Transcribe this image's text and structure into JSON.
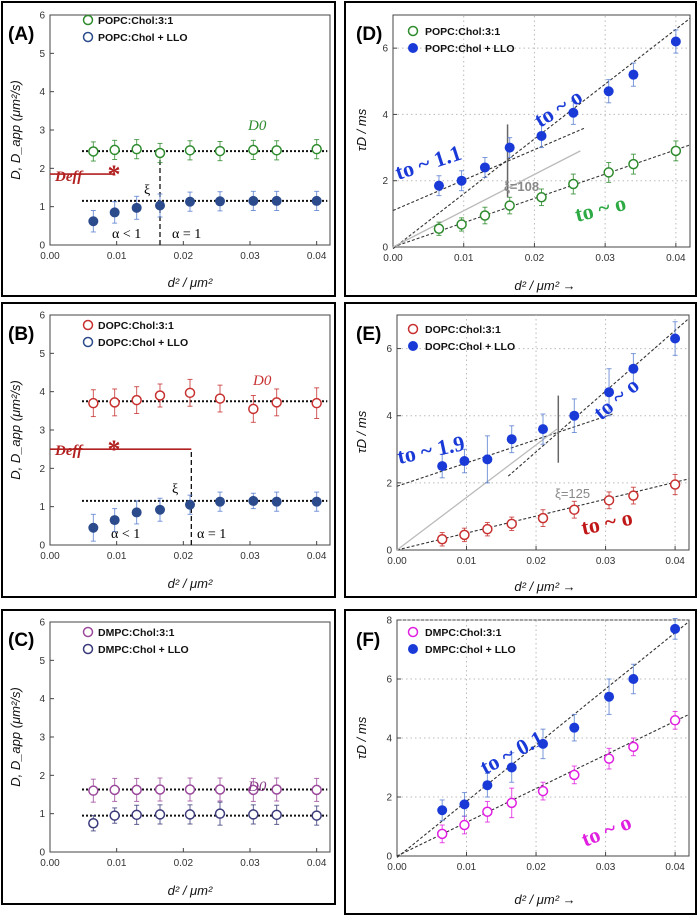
{
  "chart_data": [
    {
      "id": "A",
      "panel_label": "(A)",
      "type": "scatter",
      "xlabel": "d² / μm²",
      "ylabel": "D, D_app (μm²/s)",
      "xlim": [
        0,
        0.042
      ],
      "ylim": [
        0,
        6
      ],
      "xticks": [
        "0.00",
        "0.01",
        "0.02",
        "0.03",
        "0.04"
      ],
      "yticks": [
        "0",
        "1",
        "2",
        "3",
        "4",
        "5",
        "6"
      ],
      "series": [
        {
          "name": "POPC:Chol:3:1",
          "marker": "open",
          "color": "#2e8b2e",
          "x": [
            0.0065,
            0.0097,
            0.013,
            0.0165,
            0.021,
            0.0255,
            0.0305,
            0.034,
            0.04
          ],
          "y": [
            2.44,
            2.48,
            2.5,
            2.4,
            2.47,
            2.45,
            2.48,
            2.47,
            2.5
          ],
          "err": [
            0.25,
            0.25,
            0.25,
            0.25,
            0.25,
            0.25,
            0.25,
            0.25,
            0.25
          ]
        },
        {
          "name": "POPC:Chol + LLO",
          "marker": "filled",
          "color": "#2b4b8c",
          "x": [
            0.0065,
            0.0097,
            0.013,
            0.0165,
            0.021,
            0.0255,
            0.0305,
            0.034,
            0.04
          ],
          "y": [
            0.62,
            0.85,
            0.97,
            1.03,
            1.13,
            1.14,
            1.15,
            1.15,
            1.15
          ],
          "err": [
            0.28,
            0.28,
            0.3,
            0.3,
            0.25,
            0.25,
            0.25,
            0.25,
            0.25
          ]
        }
      ],
      "hlines": [
        2.45,
        1.15
      ],
      "vline": 0.0165,
      "annotations": {
        "d0": "D0",
        "deff": "Deff",
        "xi": "ξ",
        "alpha_lt": "α < 1",
        "alpha_eq": "α = 1"
      },
      "deff": {
        "y": 1.85,
        "x_end": 0.0096,
        "color": "#b22020"
      }
    },
    {
      "id": "B",
      "panel_label": "(B)",
      "type": "scatter",
      "xlabel": "d² / μm²",
      "ylabel": "D, D_app (μm²/s)",
      "xlim": [
        0,
        0.042
      ],
      "ylim": [
        0,
        6
      ],
      "xticks": [
        "0.00",
        "0.01",
        "0.02",
        "0.03",
        "0.04"
      ],
      "yticks": [
        "0",
        "1",
        "2",
        "3",
        "4",
        "5",
        "6"
      ],
      "series": [
        {
          "name": "DOPC:Chol:3:1",
          "marker": "open",
          "color": "#c83030",
          "x": [
            0.0065,
            0.0097,
            0.013,
            0.0165,
            0.021,
            0.0255,
            0.0305,
            0.034,
            0.04
          ],
          "y": [
            3.7,
            3.72,
            3.78,
            3.9,
            3.97,
            3.82,
            3.55,
            3.72,
            3.7
          ],
          "err": [
            0.35,
            0.35,
            0.35,
            0.3,
            0.35,
            0.35,
            0.35,
            0.35,
            0.4
          ]
        },
        {
          "name": "DOPC:Chol + LLO",
          "marker": "filled",
          "color": "#2b4b8c",
          "x": [
            0.0065,
            0.0097,
            0.013,
            0.0165,
            0.021,
            0.0255,
            0.0305,
            0.034,
            0.04
          ],
          "y": [
            0.45,
            0.65,
            0.85,
            0.92,
            1.05,
            1.13,
            1.15,
            1.13,
            1.13
          ],
          "err": [
            0.35,
            0.3,
            0.3,
            0.3,
            0.25,
            0.25,
            0.2,
            0.25,
            0.25
          ]
        }
      ],
      "hlines": [
        3.75,
        1.15
      ],
      "vline": 0.0212,
      "annotations": {
        "d0": "D0",
        "deff": "Deff",
        "xi": "ξ",
        "alpha_lt": "α < 1",
        "alpha_eq": "α = 1"
      },
      "deff": {
        "y": 2.5,
        "x_end": 0.0212,
        "color": "#b22020"
      }
    },
    {
      "id": "C",
      "panel_label": "(C)",
      "type": "scatter",
      "xlabel": "d² / μm²",
      "ylabel": "D, D_app (μm²/s)",
      "xlim": [
        0,
        0.042
      ],
      "ylim": [
        0,
        6
      ],
      "xticks": [
        "0.00",
        "0.01",
        "0.02",
        "0.03",
        "0.04"
      ],
      "yticks": [
        "0",
        "1",
        "2",
        "3",
        "4",
        "5",
        "6"
      ],
      "series": [
        {
          "name": "DMPC:Chol:3:1",
          "marker": "open",
          "color": "#9a4a9a",
          "x": [
            0.0065,
            0.0097,
            0.013,
            0.0165,
            0.021,
            0.0255,
            0.0305,
            0.034,
            0.04
          ],
          "y": [
            1.6,
            1.62,
            1.62,
            1.63,
            1.63,
            1.63,
            1.62,
            1.63,
            1.62
          ],
          "err": [
            0.3,
            0.3,
            0.3,
            0.3,
            0.3,
            0.3,
            0.3,
            0.3,
            0.3
          ]
        },
        {
          "name": "DMPC:Chol + LLO",
          "marker": "open",
          "color": "#3a3a7a",
          "x": [
            0.0065,
            0.0097,
            0.013,
            0.0165,
            0.021,
            0.0255,
            0.0305,
            0.034,
            0.04
          ],
          "y": [
            0.75,
            0.95,
            0.97,
            0.98,
            0.98,
            1.0,
            0.98,
            0.97,
            0.95
          ],
          "err": [
            0.2,
            0.2,
            0.25,
            0.25,
            0.25,
            0.3,
            0.25,
            0.25,
            0.25
          ]
        }
      ],
      "hlines": [
        1.63,
        0.95
      ],
      "vline": null,
      "annotations": {
        "d0": "D0"
      }
    },
    {
      "id": "D",
      "panel_label": "(D)",
      "type": "scatter",
      "xlabel": "d² / μm² →",
      "ylabel": "τD / ms",
      "xlim": [
        0,
        0.042
      ],
      "ylim": [
        0,
        7
      ],
      "xticks": [
        "0.00",
        "0.01",
        "0.02",
        "0.03",
        "0.04"
      ],
      "yticks": [
        "0",
        "2",
        "4",
        "6"
      ],
      "series": [
        {
          "name": "POPC:Chol:3:1",
          "marker": "open",
          "color": "#2e8b2e",
          "x": [
            0.0065,
            0.0097,
            0.013,
            0.0165,
            0.021,
            0.0255,
            0.0305,
            0.034,
            0.04
          ],
          "y": [
            0.55,
            0.68,
            0.95,
            1.25,
            1.5,
            1.9,
            2.25,
            2.5,
            2.9
          ],
          "err": [
            0.2,
            0.2,
            0.25,
            0.25,
            0.25,
            0.3,
            0.3,
            0.3,
            0.3
          ]
        },
        {
          "name": "POPC:Chol + LLO",
          "marker": "filled",
          "color": "#1a3ad8",
          "x": [
            0.0065,
            0.0097,
            0.013,
            0.0165,
            0.021,
            0.0255,
            0.0305,
            0.034,
            0.04
          ],
          "y": [
            1.85,
            2.0,
            2.4,
            3.0,
            3.35,
            4.05,
            4.7,
            5.2,
            6.2
          ],
          "err": [
            0.3,
            0.3,
            0.3,
            0.3,
            0.35,
            0.35,
            0.35,
            0.35,
            0.35
          ]
        }
      ],
      "fit_lines": [
        [
          0,
          0,
          0.042,
          3.08
        ],
        [
          0,
          1.1,
          0.027,
          3.58
        ],
        [
          0,
          -0.05,
          0.042,
          6.9
        ],
        [
          0,
          0,
          0.0265,
          2.9
        ]
      ],
      "vline": {
        "x": 0.0162,
        "y0": 1.5,
        "y1": 3.7
      },
      "annotations": {
        "t1": "to ~ 1.1",
        "t2": "to ~ o",
        "t3": "to ~ o",
        "xi": "ξ=108"
      }
    },
    {
      "id": "E",
      "panel_label": "(E)",
      "type": "scatter",
      "xlabel": "d² / μm² →",
      "ylabel": "τD / ms",
      "xlim": [
        0,
        0.042
      ],
      "ylim": [
        0,
        7
      ],
      "xticks": [
        "0.00",
        "0.01",
        "0.02",
        "0.03",
        "0.04"
      ],
      "yticks": [
        "0",
        "2",
        "4",
        "6"
      ],
      "series": [
        {
          "name": "DOPC:Chol:3:1",
          "marker": "open",
          "color": "#c83030",
          "x": [
            0.0065,
            0.0097,
            0.013,
            0.0165,
            0.021,
            0.0255,
            0.0305,
            0.034,
            0.04
          ],
          "y": [
            0.32,
            0.45,
            0.62,
            0.78,
            0.95,
            1.2,
            1.48,
            1.62,
            1.95
          ],
          "err": [
            0.2,
            0.2,
            0.2,
            0.2,
            0.25,
            0.25,
            0.25,
            0.25,
            0.3
          ]
        },
        {
          "name": "DOPC:Chol + LLO",
          "marker": "filled",
          "color": "#1a3ad8",
          "x": [
            0.0065,
            0.0097,
            0.013,
            0.0165,
            0.021,
            0.0255,
            0.0305,
            0.034,
            0.04
          ],
          "y": [
            2.5,
            2.65,
            2.7,
            3.3,
            3.6,
            4.0,
            4.7,
            5.4,
            6.3
          ],
          "err": [
            0.35,
            0.35,
            0.7,
            0.4,
            0.45,
            0.5,
            0.7,
            0.45,
            0.5
          ]
        }
      ],
      "fit_lines": [
        [
          0,
          0,
          0.042,
          2.12
        ],
        [
          0,
          1.9,
          0.031,
          4.05
        ],
        [
          0.016,
          2.2,
          0.042,
          6.9
        ],
        [
          0,
          0,
          0.023,
          3.6
        ]
      ],
      "vline": {
        "x": 0.0232,
        "y0": 2.6,
        "y1": 4.6
      },
      "annotations": {
        "t1": "to ~ 1.9",
        "t2": "to ~ o",
        "t3": "to ~ o",
        "xi": "ξ=125"
      }
    },
    {
      "id": "F",
      "panel_label": "(F)",
      "type": "scatter",
      "xlabel": "d² / μm² →",
      "ylabel": "τD / ms",
      "xlim": [
        0,
        0.042
      ],
      "ylim": [
        0,
        8
      ],
      "xticks": [
        "0.00",
        "0.01",
        "0.02",
        "0.03",
        "0.04"
      ],
      "yticks": [
        "0",
        "2",
        "4",
        "6",
        "8"
      ],
      "series": [
        {
          "name": "DMPC:Chol:3:1",
          "marker": "open",
          "color": "#e020e0",
          "x": [
            0.0065,
            0.0097,
            0.013,
            0.0165,
            0.021,
            0.0255,
            0.0305,
            0.034,
            0.04
          ],
          "y": [
            0.75,
            1.05,
            1.5,
            1.8,
            2.2,
            2.75,
            3.3,
            3.7,
            4.6
          ],
          "err": [
            0.3,
            0.3,
            0.35,
            0.5,
            0.3,
            0.3,
            0.35,
            0.3,
            0.3
          ]
        },
        {
          "name": "DMPC:Chol + LLO",
          "marker": "filled",
          "color": "#1a3ad8",
          "x": [
            0.0065,
            0.0097,
            0.013,
            0.0165,
            0.021,
            0.0255,
            0.0305,
            0.034,
            0.04
          ],
          "y": [
            1.55,
            1.75,
            2.4,
            3.0,
            3.8,
            4.35,
            5.4,
            6.0,
            7.7
          ],
          "err": [
            0.35,
            0.4,
            0.4,
            0.5,
            0.5,
            0.45,
            0.6,
            0.5,
            0.35
          ]
        }
      ],
      "fit_lines": [
        [
          0,
          0,
          0.042,
          4.8
        ],
        [
          0,
          -0.05,
          0.042,
          7.95
        ]
      ],
      "annotations": {
        "t1": "to ~ 0.1",
        "t3": "to ~ o"
      }
    }
  ]
}
